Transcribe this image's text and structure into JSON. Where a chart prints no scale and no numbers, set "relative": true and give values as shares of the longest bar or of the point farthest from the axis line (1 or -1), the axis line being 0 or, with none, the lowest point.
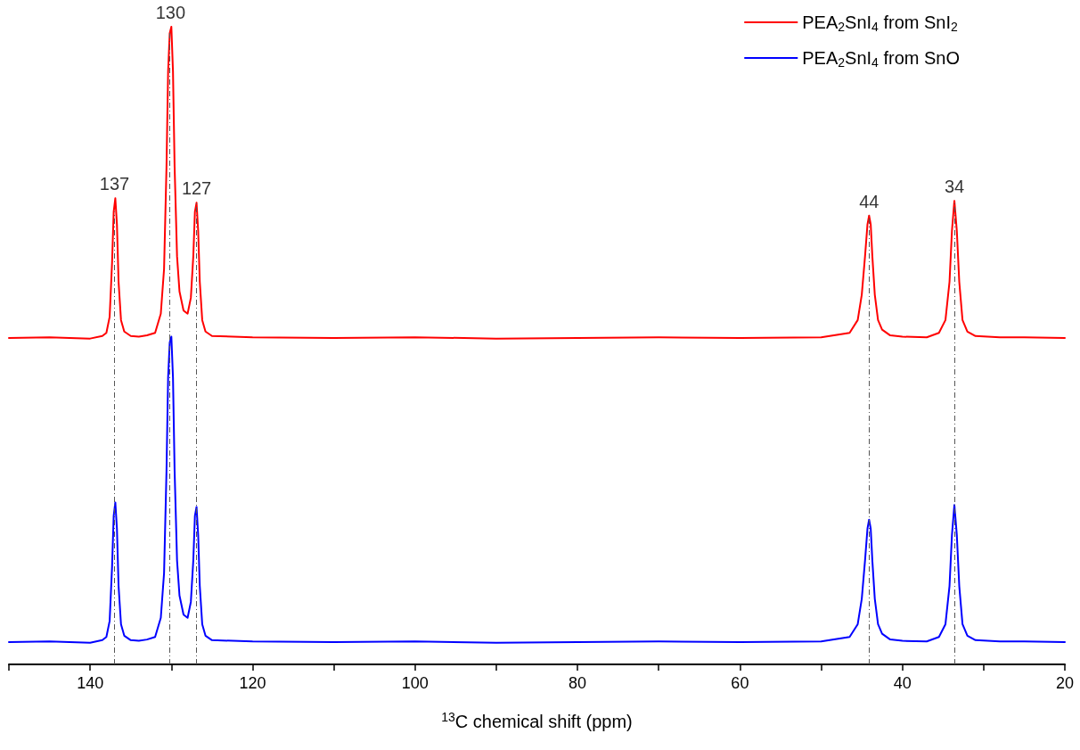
{
  "chart_data": {
    "type": "line",
    "relative": true,
    "xlabel": "$^{13}$C chemical shift (ppm)",
    "x": [
      150,
      145,
      140,
      138.5,
      138,
      137.6,
      137.3,
      137.1,
      136.9,
      136.7,
      136.5,
      136.2,
      135.8,
      135,
      134,
      133,
      132,
      131.3,
      130.9,
      130.6,
      130.4,
      130.2,
      130.0,
      129.8,
      129.6,
      129.3,
      129.0,
      128.5,
      128.0,
      127.6,
      127.3,
      127.1,
      126.9,
      126.7,
      126.5,
      126.2,
      125.8,
      125,
      120,
      110,
      100,
      90,
      80,
      70,
      60,
      50,
      46.5,
      45.5,
      45,
      44.6,
      44.3,
      44.1,
      43.9,
      43.7,
      43.4,
      43.0,
      42.5,
      41.5,
      40,
      37,
      35.5,
      34.7,
      34.2,
      33.9,
      33.6,
      33.3,
      33.0,
      32.6,
      32,
      31,
      28,
      25,
      20
    ],
    "series": [
      {
        "name": "PEA$_{2}$SnI$_{4}$ from SnI$_{2}$",
        "color": "#ff0000",
        "values": [
          0.512,
          0.513,
          0.511,
          0.515,
          0.52,
          0.545,
          0.63,
          0.71,
          0.731,
          0.69,
          0.6,
          0.54,
          0.522,
          0.515,
          0.514,
          0.516,
          0.52,
          0.55,
          0.62,
          0.78,
          0.93,
          0.99,
          1.0,
          0.93,
          0.78,
          0.64,
          0.585,
          0.555,
          0.55,
          0.575,
          0.64,
          0.71,
          0.724,
          0.68,
          0.6,
          0.54,
          0.522,
          0.515,
          0.513,
          0.512,
          0.513,
          0.511,
          0.512,
          0.513,
          0.512,
          0.513,
          0.52,
          0.54,
          0.58,
          0.64,
          0.69,
          0.704,
          0.69,
          0.64,
          0.58,
          0.54,
          0.525,
          0.516,
          0.514,
          0.513,
          0.52,
          0.54,
          0.6,
          0.68,
          0.727,
          0.68,
          0.6,
          0.54,
          0.522,
          0.515,
          0.513,
          0.513,
          0.512
        ]
      },
      {
        "name": "PEA$_{2}$SnI$_{4}$ from SnO",
        "color": "#0000ff",
        "values": [
          0.035,
          0.036,
          0.034,
          0.038,
          0.043,
          0.068,
          0.153,
          0.233,
          0.254,
          0.213,
          0.123,
          0.063,
          0.045,
          0.038,
          0.037,
          0.039,
          0.043,
          0.073,
          0.143,
          0.303,
          0.45,
          0.505,
          0.514,
          0.45,
          0.303,
          0.163,
          0.108,
          0.078,
          0.073,
          0.098,
          0.163,
          0.233,
          0.247,
          0.203,
          0.123,
          0.063,
          0.045,
          0.038,
          0.036,
          0.035,
          0.036,
          0.034,
          0.035,
          0.036,
          0.035,
          0.036,
          0.043,
          0.063,
          0.103,
          0.163,
          0.213,
          0.227,
          0.213,
          0.163,
          0.103,
          0.063,
          0.048,
          0.039,
          0.037,
          0.036,
          0.043,
          0.063,
          0.123,
          0.203,
          0.25,
          0.203,
          0.123,
          0.063,
          0.045,
          0.038,
          0.036,
          0.036,
          0.035
        ]
      }
    ],
    "xlim": [
      150,
      20
    ],
    "xticks": [
      {
        "value": 150,
        "label": null
      },
      140,
      {
        "value": 130,
        "label": null
      },
      120,
      {
        "value": 110,
        "label": null
      },
      100,
      {
        "value": 90,
        "label": null
      },
      80,
      {
        "value": 70,
        "label": null
      },
      60,
      {
        "value": 50,
        "label": null
      },
      40,
      {
        "value": 30,
        "label": null
      },
      20
    ],
    "annotations": [
      {
        "text": "137",
        "x": 137,
        "y": 0.731
      },
      {
        "text": "130",
        "x": 130.1,
        "y": 1.0
      },
      {
        "text": "127",
        "x": 126.9,
        "y": 0.724
      },
      {
        "text": "44",
        "x": 44.1,
        "y": 0.704
      },
      {
        "text": "34",
        "x": 33.6,
        "y": 0.727
      }
    ],
    "ref_lines": [
      {
        "axis": "x",
        "value": 137,
        "color": "#555555",
        "line_style": "dashed"
      },
      {
        "axis": "x",
        "value": 130.2,
        "color": "#555555",
        "line_style": "dashed"
      },
      {
        "axis": "x",
        "value": 126.9,
        "color": "#555555",
        "line_style": "dashed"
      },
      {
        "axis": "x",
        "value": 44.1,
        "color": "#555555",
        "line_style": "dashed"
      },
      {
        "axis": "x",
        "value": 33.6,
        "color": "#555555",
        "line_style": "dashed"
      }
    ],
    "legend": "top right",
    "grid": false,
    "marker": "none",
    "line_style": "solid"
  }
}
